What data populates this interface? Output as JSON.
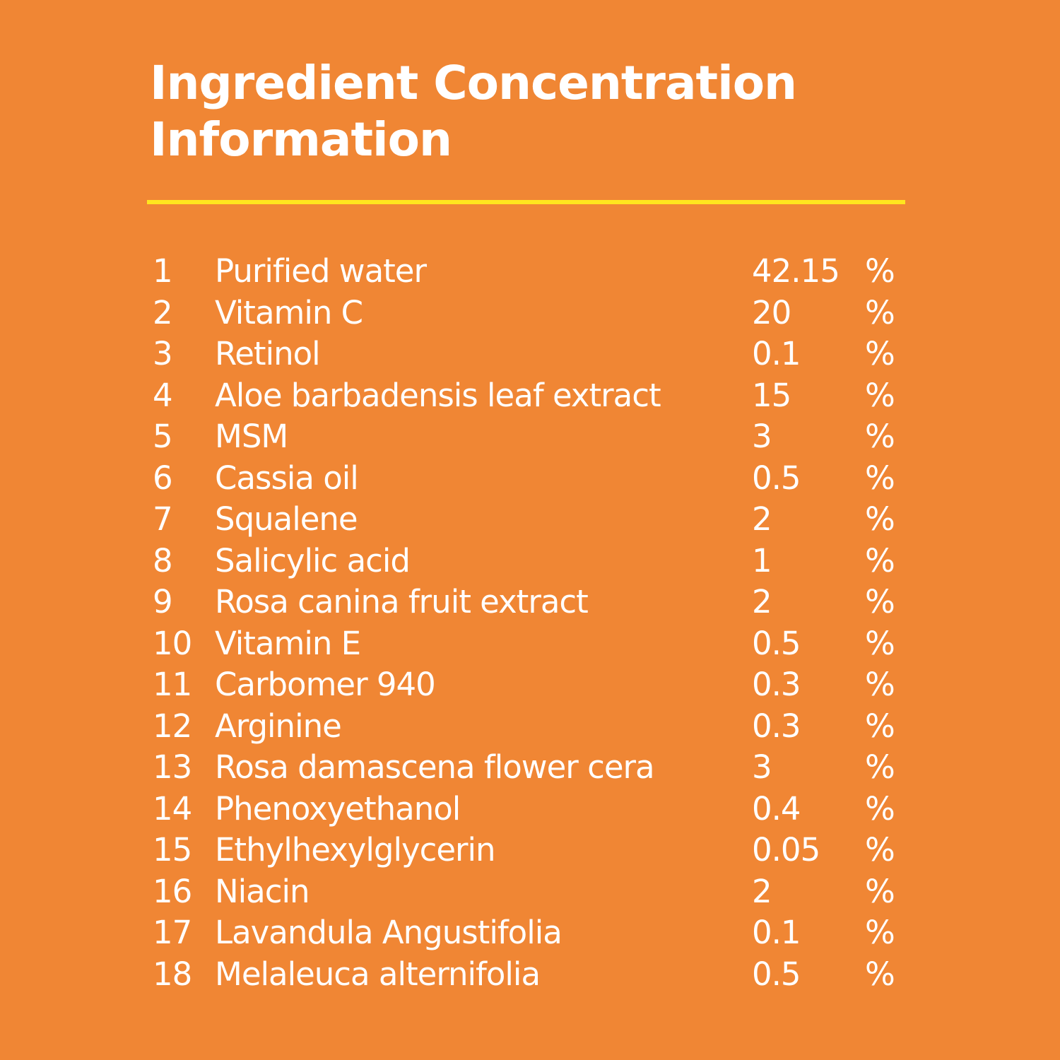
{
  "title": {
    "line1": "Ingredient Concentration",
    "line2": "Information"
  },
  "colors": {
    "background": "#F08634",
    "divider": "#FFE51F",
    "text": "#FFFFFF"
  },
  "ingredients": [
    {
      "num": "1",
      "name": "Purified water",
      "value": "42.15",
      "unit": "%"
    },
    {
      "num": "2",
      "name": "Vitamin C",
      "value": "20",
      "unit": "%"
    },
    {
      "num": "3",
      "name": "Retinol",
      "value": "0.1",
      "unit": "%"
    },
    {
      "num": "4",
      "name": "Aloe barbadensis leaf extract",
      "value": "15",
      "unit": "%"
    },
    {
      "num": "5",
      "name": "MSM",
      "value": "3",
      "unit": "%"
    },
    {
      "num": "6",
      "name": "Cassia oil",
      "value": "0.5",
      "unit": "%"
    },
    {
      "num": "7",
      "name": "Squalene",
      "value": "2",
      "unit": "%"
    },
    {
      "num": "8",
      "name": "Salicylic acid",
      "value": "1",
      "unit": "%"
    },
    {
      "num": "9",
      "name": "Rosa canina fruit extract",
      "value": "2",
      "unit": "%"
    },
    {
      "num": "10",
      "name": "Vitamin E",
      "value": "0.5",
      "unit": "%"
    },
    {
      "num": "11",
      "name": "Carbomer 940",
      "value": "0.3",
      "unit": "%"
    },
    {
      "num": "12",
      "name": "Arginine",
      "value": "0.3",
      "unit": "%"
    },
    {
      "num": "13",
      "name": "Rosa damascena flower cera",
      "value": "3",
      "unit": "%"
    },
    {
      "num": "14",
      "name": "Phenoxyethanol",
      "value": "0.4",
      "unit": "%"
    },
    {
      "num": "15",
      "name": "Ethylhexylglycerin",
      "value": "0.05",
      "unit": "%"
    },
    {
      "num": "16",
      "name": "Niacin",
      "value": "2",
      "unit": "%"
    },
    {
      "num": "17",
      "name": "Lavandula Angustifolia",
      "value": "0.1",
      "unit": "%"
    },
    {
      "num": "18",
      "name": "Melaleuca alternifolia",
      "value": "0.5",
      "unit": "%"
    }
  ]
}
